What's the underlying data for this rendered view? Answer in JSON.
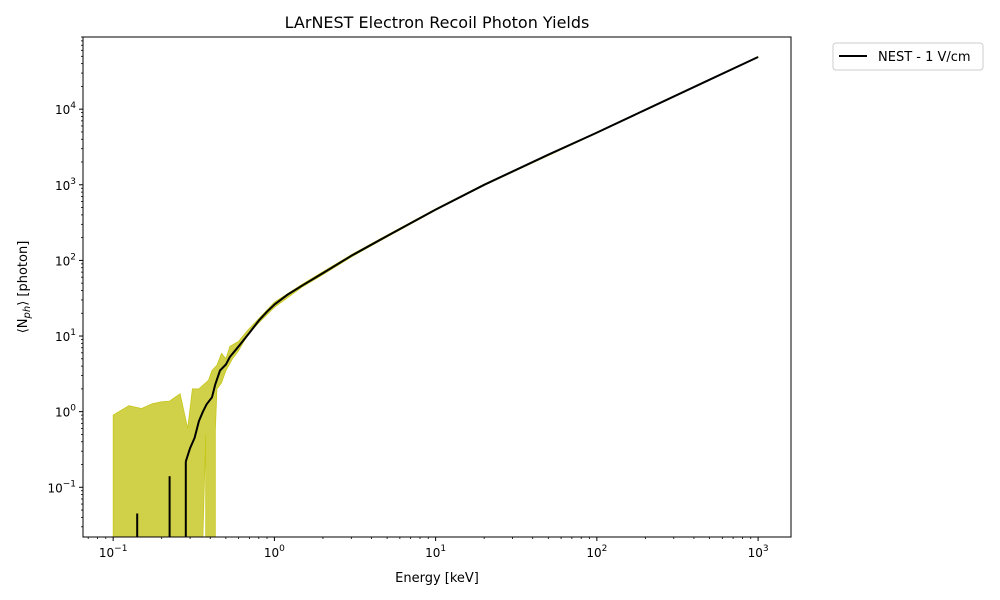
{
  "chart_data": {
    "type": "line",
    "title": "LArNEST Electron Recoil Photon Yields",
    "xlabel": "Energy [keV]",
    "ylabel": "⟨N",
    "ylabel_sub": "ph",
    "ylabel_tail": "⟩ [photon]",
    "xscale": "log",
    "yscale": "log",
    "xlim": [
      0.065,
      1600
    ],
    "ylim": [
      0.022,
      90000
    ],
    "grid": false,
    "legend_position": "outside-top-right",
    "x_ticks": [
      {
        "value": 0.1,
        "base": "10",
        "exp": "−1"
      },
      {
        "value": 1,
        "base": "10",
        "exp": "0"
      },
      {
        "value": 10,
        "base": "10",
        "exp": "1"
      },
      {
        "value": 100,
        "base": "10",
        "exp": "2"
      },
      {
        "value": 1000,
        "base": "10",
        "exp": "3"
      }
    ],
    "y_ticks": [
      {
        "value": 0.1,
        "base": "10",
        "exp": "−1"
      },
      {
        "value": 1,
        "base": "10",
        "exp": "0"
      },
      {
        "value": 10,
        "base": "10",
        "exp": "1"
      },
      {
        "value": 100,
        "base": "10",
        "exp": "2"
      },
      {
        "value": 1000,
        "base": "10",
        "exp": "3"
      },
      {
        "value": 10000,
        "base": "10",
        "exp": "4"
      }
    ],
    "series": [
      {
        "name": "NEST - 1 V/cm",
        "color": "#000000",
        "segments": [
          [
            [
              0.141,
              0.022
            ],
            [
              0.141,
              0.045
            ]
          ],
          [
            [
              0.224,
              0.022
            ],
            [
              0.224,
              0.14
            ]
          ],
          [
            [
              0.282,
              0.022
            ],
            [
              0.282,
              0.22
            ]
          ],
          [
            [
              0.282,
              0.22
            ],
            [
              0.3,
              0.33
            ],
            [
              0.32,
              0.45
            ],
            [
              0.34,
              0.75
            ],
            [
              0.36,
              1.0
            ],
            [
              0.38,
              1.25
            ],
            [
              0.41,
              1.55
            ],
            [
              0.43,
              2.3
            ],
            [
              0.46,
              3.5
            ],
            [
              0.5,
              4.2
            ],
            [
              0.53,
              5.3
            ],
            [
              0.58,
              6.7
            ],
            [
              0.63,
              8.3
            ],
            [
              0.7,
              11
            ],
            [
              0.8,
              16
            ],
            [
              0.9,
              21
            ],
            [
              1.0,
              26
            ],
            [
              1.2,
              35
            ],
            [
              1.5,
              47
            ],
            [
              2.0,
              68
            ],
            [
              3.0,
              115
            ],
            [
              5.0,
              210
            ],
            [
              10,
              470
            ],
            [
              20,
              1000
            ],
            [
              50,
              2500
            ],
            [
              100,
              4900
            ],
            [
              200,
              9800
            ],
            [
              500,
              24500
            ],
            [
              1000,
              49000
            ]
          ]
        ]
      }
    ],
    "band": {
      "color": "#c6c61b",
      "upper": [
        [
          0.1,
          0.9
        ],
        [
          0.125,
          1.2
        ],
        [
          0.15,
          1.1
        ],
        [
          0.175,
          1.27
        ],
        [
          0.2,
          1.35
        ],
        [
          0.224,
          1.38
        ],
        [
          0.26,
          1.72
        ],
        [
          0.29,
          0.6
        ],
        [
          0.31,
          2.0
        ],
        [
          0.34,
          2.0
        ],
        [
          0.39,
          2.6
        ],
        [
          0.41,
          3.5
        ],
        [
          0.44,
          4.1
        ],
        [
          0.47,
          5.9
        ],
        [
          0.5,
          5.0
        ],
        [
          0.53,
          7.3
        ],
        [
          0.6,
          8.5
        ],
        [
          0.68,
          11.8
        ],
        [
          0.8,
          17
        ],
        [
          1.0,
          28
        ],
        [
          1.5,
          49
        ],
        [
          2.0,
          71
        ],
        [
          3.0,
          119
        ],
        [
          5.0,
          216
        ],
        [
          10,
          480
        ],
        [
          20,
          1020
        ],
        [
          100,
          4980
        ],
        [
          1000,
          49600
        ]
      ],
      "lower": [
        [
          1000,
          48400
        ],
        [
          100,
          4820
        ],
        [
          20,
          980
        ],
        [
          10,
          460
        ],
        [
          5.0,
          204
        ],
        [
          3.0,
          111
        ],
        [
          2.0,
          65
        ],
        [
          1.5,
          45
        ],
        [
          1.0,
          24
        ],
        [
          0.8,
          15
        ],
        [
          0.68,
          10.2
        ],
        [
          0.6,
          6.4
        ],
        [
          0.55,
          5.0
        ],
        [
          0.5,
          3.5
        ],
        [
          0.47,
          2.4
        ],
        [
          0.44,
          2.0
        ],
        [
          0.43,
          0.55
        ],
        [
          0.43,
          0.022
        ],
        [
          0.375,
          0.022
        ],
        [
          0.375,
          0.5
        ],
        [
          0.36,
          0.022
        ],
        [
          0.1,
          0.022
        ]
      ]
    }
  }
}
